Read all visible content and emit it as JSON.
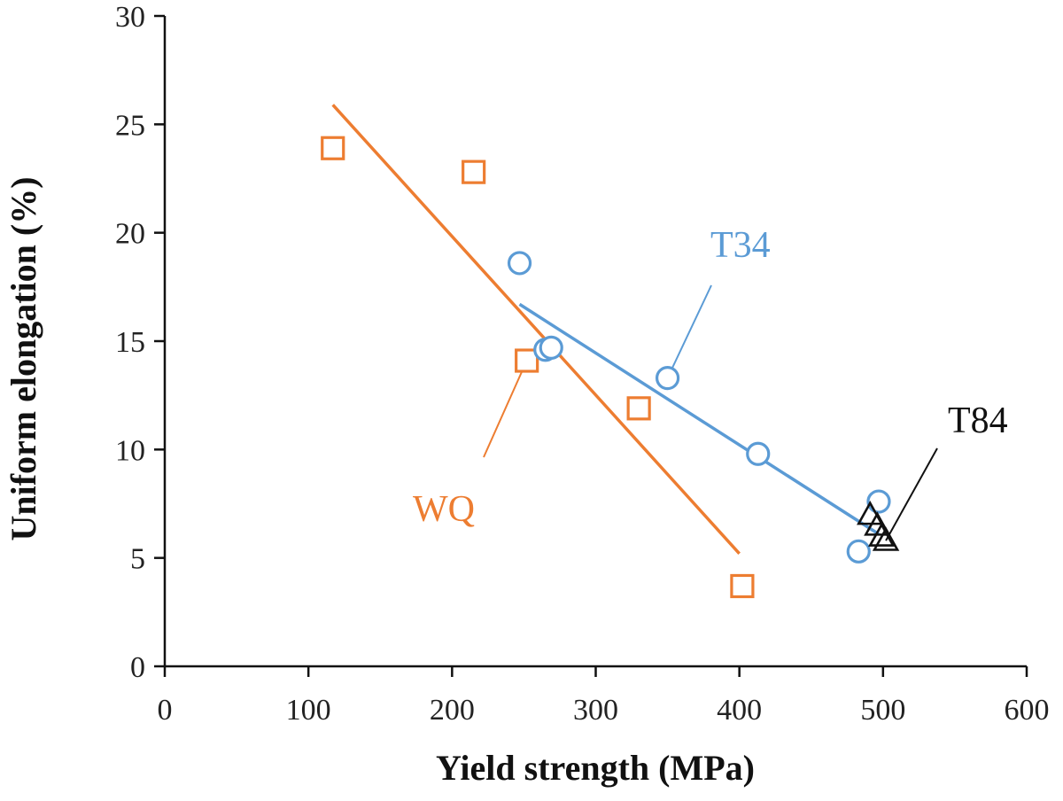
{
  "chart_data": {
    "type": "scatter",
    "xlabel": "Yield strength (MPa)",
    "ylabel": "Uniform elongation (%)",
    "xlim": [
      0,
      600
    ],
    "ylim": [
      0,
      30
    ],
    "x_ticks": [
      0,
      100,
      200,
      300,
      400,
      500,
      600
    ],
    "y_ticks": [
      0,
      5,
      10,
      15,
      20,
      25,
      30
    ],
    "x_tick_labels": [
      "0",
      "100",
      "200",
      "300",
      "400",
      "500",
      "600"
    ],
    "y_tick_labels": [
      "0",
      "5",
      "10",
      "15",
      "20",
      "25",
      "30"
    ],
    "grid": false,
    "legend": "none",
    "series": [
      {
        "name": "WQ",
        "marker": "square",
        "color": "#ed7d31",
        "points": [
          {
            "x": 117,
            "y": 23.9
          },
          {
            "x": 215,
            "y": 22.8
          },
          {
            "x": 252,
            "y": 14.1
          },
          {
            "x": 330,
            "y": 11.9
          },
          {
            "x": 402,
            "y": 3.7
          }
        ],
        "trendline": [
          {
            "x": 117,
            "y": 25.9
          },
          {
            "x": 400,
            "y": 5.2
          }
        ]
      },
      {
        "name": "T34",
        "marker": "circle",
        "color": "#5b9bd5",
        "points": [
          {
            "x": 247,
            "y": 18.6
          },
          {
            "x": 265,
            "y": 14.6
          },
          {
            "x": 269,
            "y": 14.7
          },
          {
            "x": 350,
            "y": 13.3
          },
          {
            "x": 413,
            "y": 9.8
          },
          {
            "x": 497,
            "y": 7.6
          },
          {
            "x": 483,
            "y": 5.3
          }
        ],
        "trendline": [
          {
            "x": 247,
            "y": 16.7
          },
          {
            "x": 497,
            "y": 6.1
          }
        ]
      },
      {
        "name": "T84",
        "marker": "triangle",
        "color": "#111111",
        "points": [
          {
            "x": 491,
            "y": 7.0
          },
          {
            "x": 496,
            "y": 6.5
          },
          {
            "x": 499,
            "y": 6.0
          },
          {
            "x": 502,
            "y": 5.8
          }
        ]
      }
    ],
    "annotations": [
      {
        "text": "T34",
        "series": "T34"
      },
      {
        "text": "WQ",
        "series": "WQ"
      },
      {
        "text": "T84",
        "series": "T84"
      }
    ]
  }
}
